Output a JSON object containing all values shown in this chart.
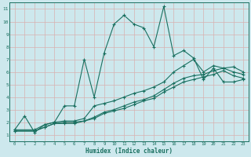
{
  "xlabel": "Humidex (Indice chaleur)",
  "bg_color": "#cde8ed",
  "grid_color": "#b0d4da",
  "line_color": "#1a7060",
  "xlim": [
    -0.5,
    23.5
  ],
  "ylim": [
    0.5,
    11.5
  ],
  "xticks": [
    0,
    1,
    2,
    3,
    4,
    5,
    6,
    7,
    8,
    9,
    10,
    11,
    12,
    13,
    14,
    15,
    16,
    17,
    18,
    19,
    20,
    21,
    22,
    23
  ],
  "yticks": [
    1,
    2,
    3,
    4,
    5,
    6,
    7,
    8,
    9,
    10,
    11
  ],
  "line1_x": [
    0,
    1,
    2,
    3,
    4,
    5,
    6,
    7,
    8,
    9,
    10,
    11,
    12,
    13,
    14,
    15,
    16,
    17,
    18,
    19,
    20,
    21,
    22,
    23
  ],
  "line1_y": [
    1.4,
    2.5,
    1.2,
    1.8,
    2.0,
    3.3,
    3.3,
    7.0,
    4.0,
    7.5,
    9.8,
    10.5,
    9.8,
    9.5,
    8.0,
    11.2,
    7.3,
    7.7,
    7.1,
    5.4,
    6.3,
    5.2,
    5.2,
    5.4
  ],
  "line2_x": [
    0,
    2,
    3,
    4,
    5,
    6,
    7,
    8,
    9,
    10,
    11,
    12,
    13,
    14,
    15,
    16,
    17,
    18,
    19,
    20,
    21,
    22,
    23
  ],
  "line2_y": [
    1.4,
    1.4,
    1.8,
    2.0,
    2.1,
    2.1,
    2.3,
    3.3,
    3.5,
    3.7,
    4.0,
    4.3,
    4.5,
    4.8,
    5.2,
    6.0,
    6.5,
    7.0,
    6.0,
    6.5,
    6.3,
    6.4,
    6.0
  ],
  "line3_x": [
    0,
    2,
    3,
    4,
    5,
    6,
    7,
    8,
    9,
    10,
    11,
    12,
    13,
    14,
    15,
    16,
    17,
    18,
    19,
    20,
    21,
    22,
    23
  ],
  "line3_y": [
    1.3,
    1.3,
    1.6,
    1.9,
    2.0,
    2.0,
    2.1,
    2.4,
    2.8,
    3.0,
    3.3,
    3.6,
    3.8,
    4.1,
    4.6,
    5.1,
    5.5,
    5.7,
    5.8,
    6.1,
    6.3,
    6.0,
    5.8
  ],
  "line4_x": [
    0,
    2,
    3,
    4,
    5,
    6,
    7,
    8,
    9,
    10,
    11,
    12,
    13,
    14,
    15,
    16,
    17,
    18,
    19,
    20,
    21,
    22,
    23
  ],
  "line4_y": [
    1.3,
    1.3,
    1.6,
    1.9,
    1.9,
    1.9,
    2.1,
    2.3,
    2.7,
    2.9,
    3.1,
    3.4,
    3.7,
    3.9,
    4.4,
    4.8,
    5.2,
    5.4,
    5.6,
    5.8,
    6.1,
    5.7,
    5.5
  ]
}
